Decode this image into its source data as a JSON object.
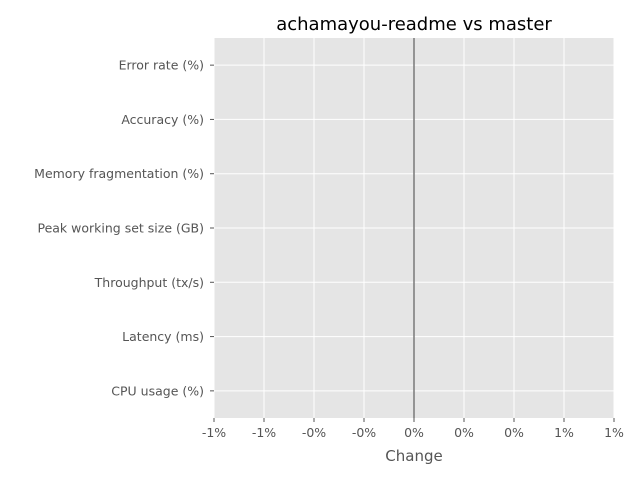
{
  "chart_data": {
    "type": "bar",
    "orientation": "horizontal",
    "title": "achamayou-readme vs master",
    "xlabel": "Change",
    "ylabel": "",
    "categories": [
      "Error rate (%)",
      "Accuracy (%)",
      "Memory fragmentation (%)",
      "Peak working set size (GB)",
      "Throughput (tx/s)",
      "Latency (ms)",
      "CPU usage (%)"
    ],
    "values": [
      0,
      0,
      0,
      0,
      0,
      0,
      0
    ],
    "xlim": [
      -0.01,
      0.01
    ],
    "xticks": [
      -0.01,
      -0.0075,
      -0.005,
      -0.0025,
      0,
      0.0025,
      0.005,
      0.0075,
      0.01
    ],
    "xtick_labels": [
      "-1%",
      "-1%",
      "-0%",
      "-0%",
      "0%",
      "0%",
      "0%",
      "1%",
      "1%"
    ],
    "reference_line_x": 0,
    "grid": true,
    "style": "ggplot",
    "colors": {
      "plot_background": "#e5e5e5",
      "grid": "#ffffff",
      "reference_line": "#808080",
      "tick_text": "#555555",
      "title_text": "#000000"
    }
  }
}
